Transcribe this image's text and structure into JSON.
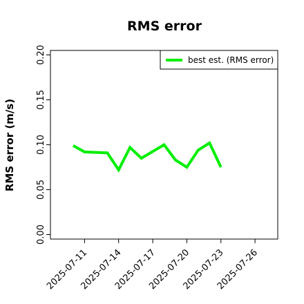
{
  "chart_data": {
    "type": "line",
    "title": "RMS error",
    "y_label": "RMS error (m/s)",
    "x": [
      "2025-07-10",
      "2025-07-11",
      "2025-07-13",
      "2025-07-14",
      "2025-07-15",
      "2025-07-16",
      "2025-07-18",
      "2025-07-19",
      "2025-07-20",
      "2025-07-21",
      "2025-07-22",
      "2025-07-23"
    ],
    "series": [
      {
        "name": "best est. (RMS error)",
        "color": "#00ee00",
        "values": [
          0.099,
          0.092,
          0.091,
          0.072,
          0.097,
          0.085,
          0.1,
          0.083,
          0.075,
          0.094,
          0.102,
          0.075
        ]
      }
    ],
    "xlim": [
      "2025-07-08",
      "2025-07-28"
    ],
    "xticks": [
      "2025-07-11",
      "2025-07-14",
      "2025-07-17",
      "2025-07-20",
      "2025-07-23",
      "2025-07-26"
    ],
    "xtick_highlight_index": 2,
    "xtick_highlight_color": "#228b22",
    "ylim": [
      -0.005,
      0.205
    ],
    "yticks": [
      {
        "value": 0,
        "label": "0.00"
      },
      {
        "value": 0.05,
        "label": "0.05"
      },
      {
        "value": 0.1,
        "label": "0.10"
      },
      {
        "value": 0.15,
        "label": "0.15"
      },
      {
        "value": 0.2,
        "label": "0.20"
      }
    ],
    "legend": "top-right",
    "grid": false
  }
}
